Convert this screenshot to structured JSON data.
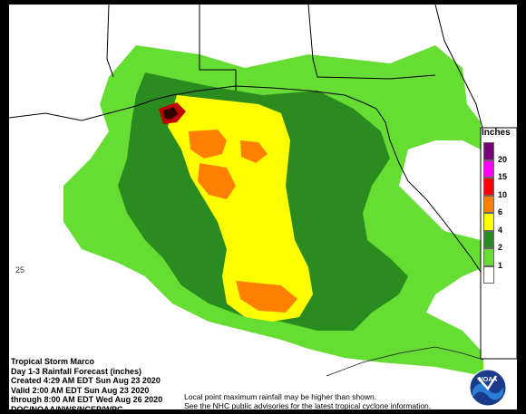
{
  "map": {
    "lat_label": "25"
  },
  "legend": {
    "title": "Inches",
    "items": [
      {
        "label": "20",
        "color": "#7a007a"
      },
      {
        "label": "15",
        "color": "#ff00ff"
      },
      {
        "label": "10",
        "color": "#ff0000"
      },
      {
        "label": "6",
        "color": "#ff8000"
      },
      {
        "label": "4",
        "color": "#ffff00"
      },
      {
        "label": "2",
        "color": "#2a8c1e"
      },
      {
        "label": "1",
        "color": "#66dd33"
      },
      {
        "label": "",
        "color": "#ffffff"
      }
    ]
  },
  "info": {
    "line1": "Tropical Storm Marco",
    "line2": "Day 1-3 Rainfall Forecast (inches)",
    "line3": "Created 4:29 AM EDT Sun Aug 23 2020",
    "line4": "Valid 2:00 AM EDT Sun Aug 23 2020",
    "line5": "through 8:00 AM EDT Wed Aug 26 2020",
    "line6": "DOC/NOAA/NWS/NCEP/WPC"
  },
  "note": {
    "line1": "Local point maximum rainfall may be higher than shown.",
    "line2": "See the NHC public advisories for the latest tropical cyclone information."
  },
  "logo": {
    "text": "NOAA",
    "icon": "noaa-logo-icon"
  }
}
